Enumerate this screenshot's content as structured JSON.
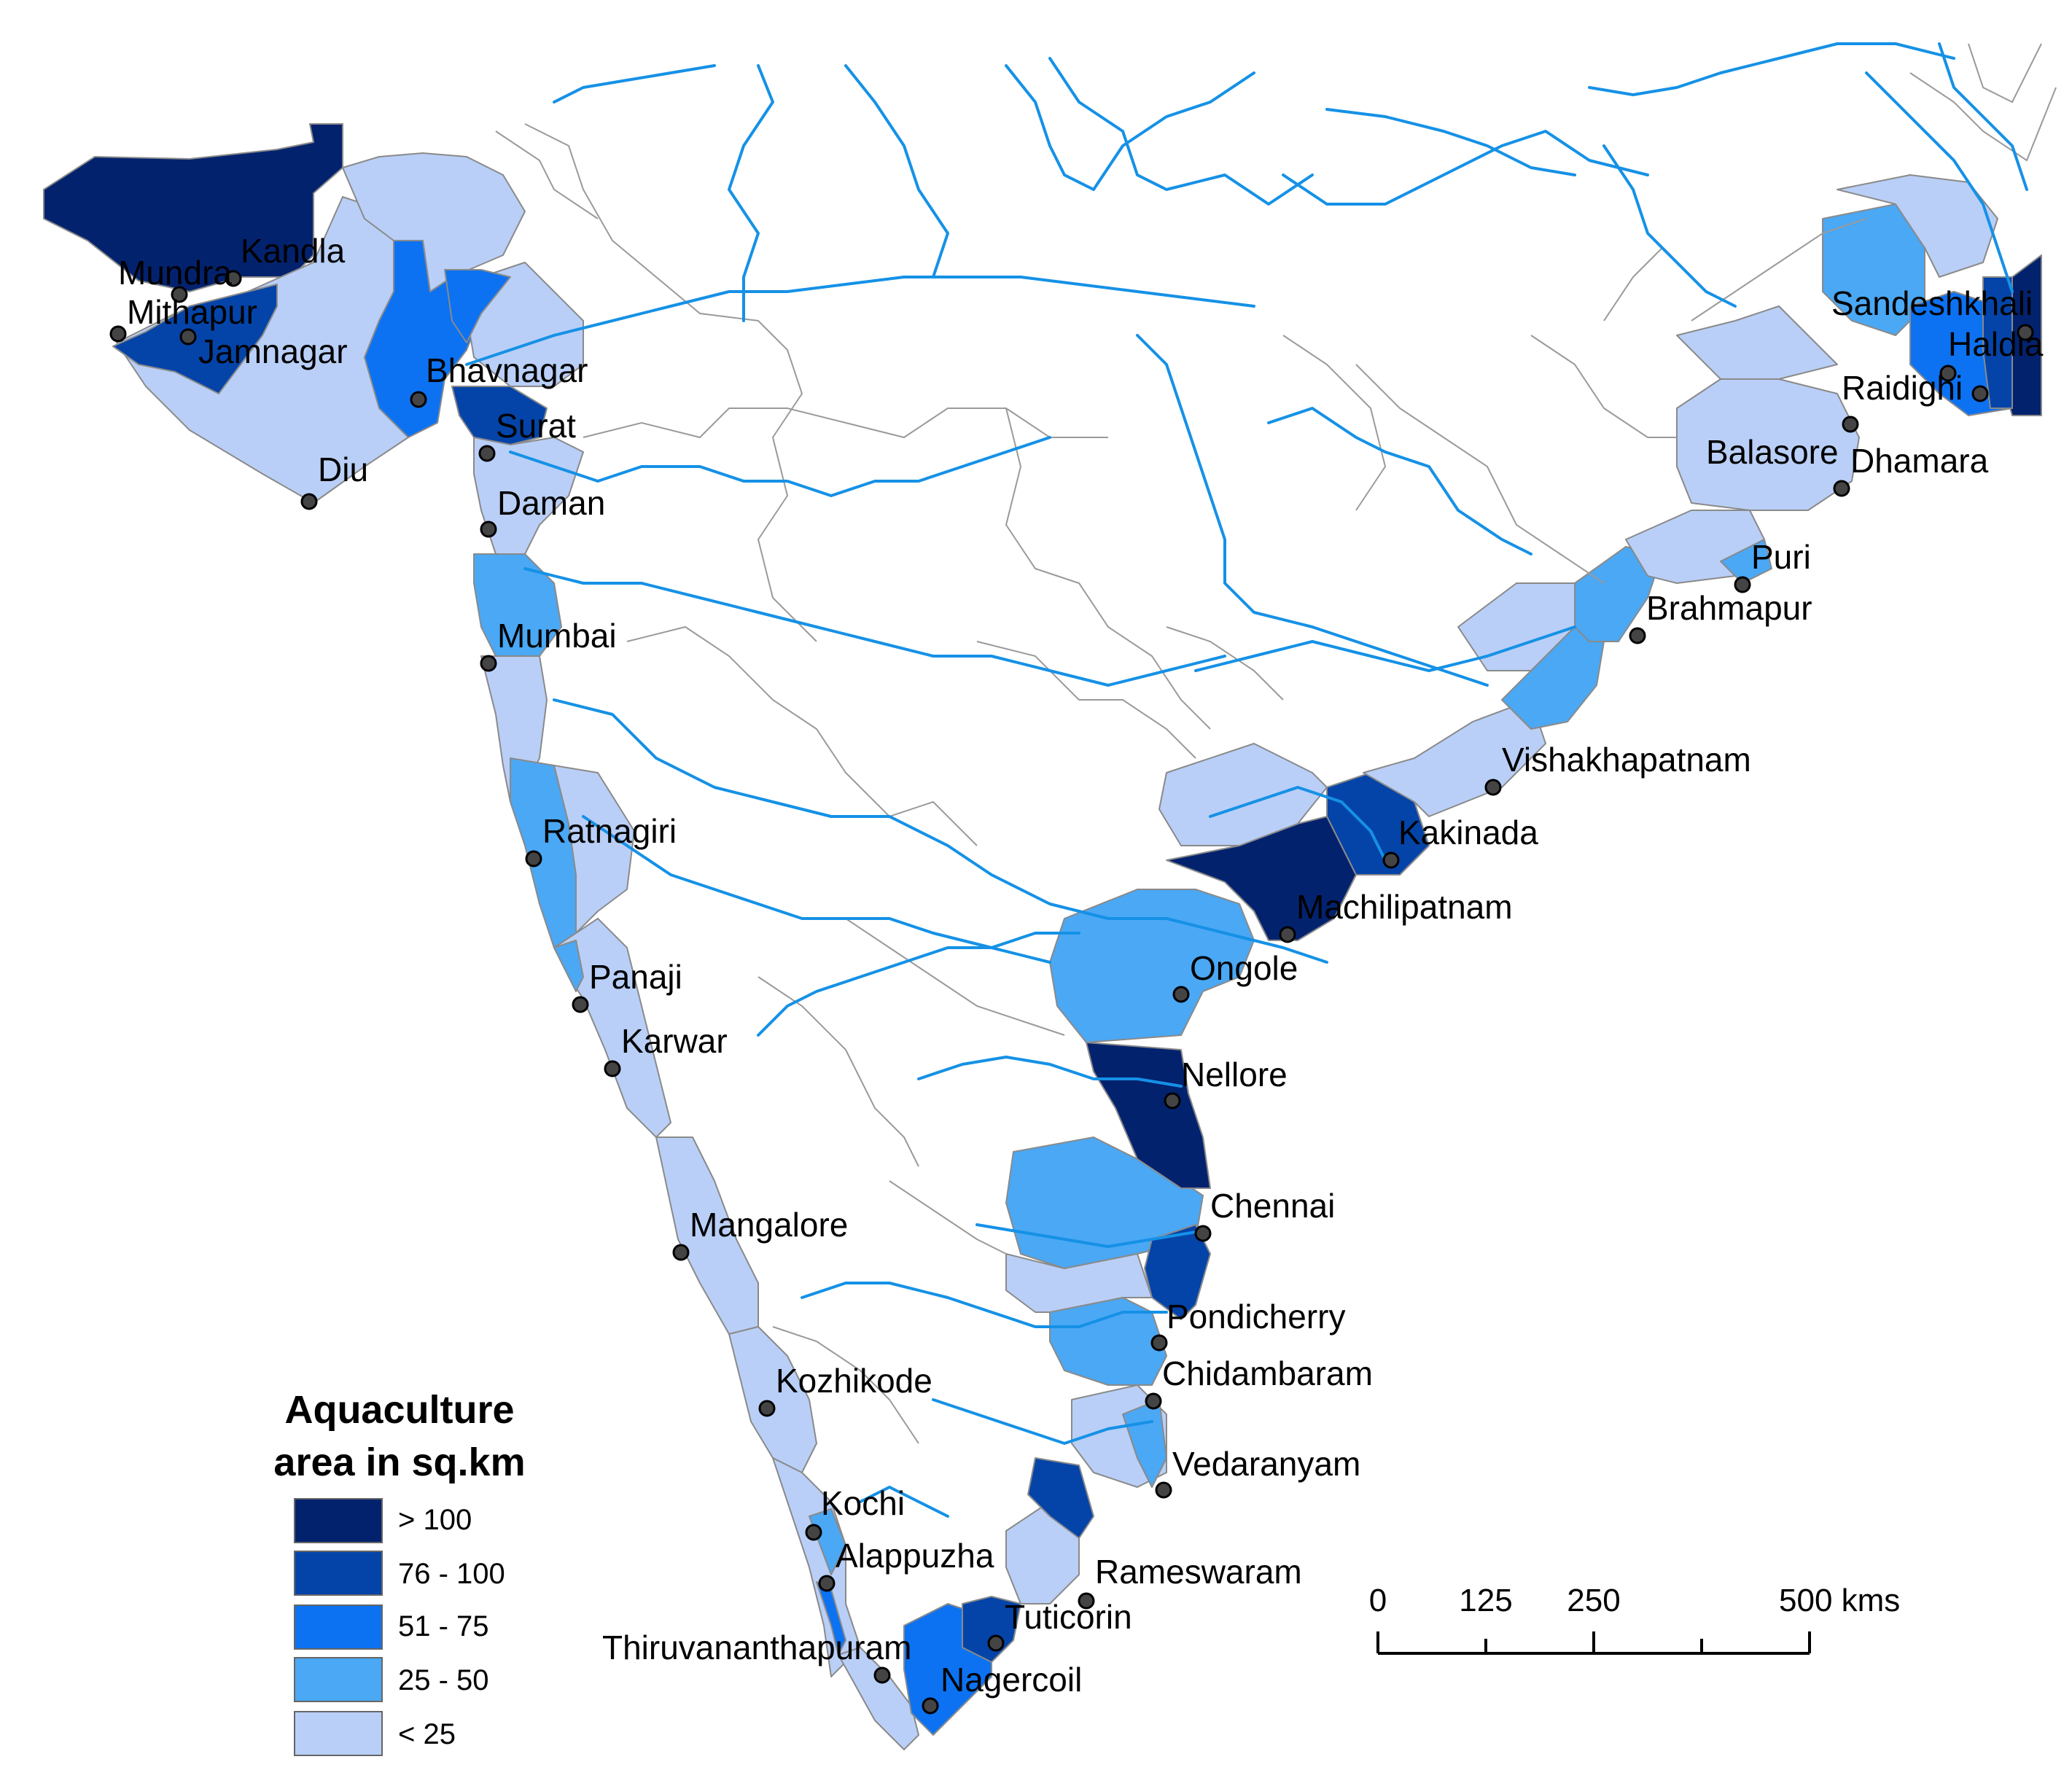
{
  "colors": {
    "gt100": "#03226e",
    "c76_100": "#0444a8",
    "c51_75": "#0c72f2",
    "c25_50": "#4aa8f5",
    "lt25": "#b9cff7",
    "river": "#1591e6",
    "boundary": "#9a9a9a"
  },
  "legend": {
    "title_line1": "Aquaculture",
    "title_line2": "area in sq.km",
    "items": [
      {
        "label": "> 100",
        "class": "gt100"
      },
      {
        "label": "76 - 100",
        "class": "c76_100"
      },
      {
        "label": "51 - 75",
        "class": "c51_75"
      },
      {
        "label": "25 - 50",
        "class": "c25_50"
      },
      {
        "label": "< 25",
        "class": "lt25"
      }
    ]
  },
  "scale_bar": {
    "labels": [
      "0",
      "125",
      "250",
      "500 kms"
    ]
  },
  "cities": [
    "Kandla",
    "Mundra",
    "Mithapur",
    "Jamnagar",
    "Bhavnagar",
    "Diu",
    "Surat",
    "Daman",
    "Mumbai",
    "Ratnagiri",
    "Panaji",
    "Karwar",
    "Mangalore",
    "Kozhikode",
    "Kochi",
    "Alappuzha",
    "Thiruvananthapuram",
    "Nagercoil",
    "Tuticorin",
    "Rameswaram",
    "Vedaranyam",
    "Chidambaram",
    "Pondicherry",
    "Chennai",
    "Nellore",
    "Ongole",
    "Machilipatnam",
    "Kakinada",
    "Vishakhapatnam",
    "Brahmapur",
    "Puri",
    "Dhamara",
    "Balasore",
    "Raidighi",
    "Haldia",
    "Sandeshkhali"
  ]
}
